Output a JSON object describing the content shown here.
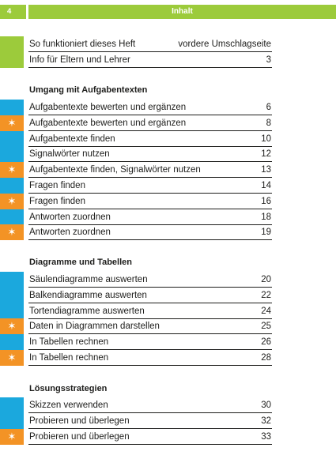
{
  "header": {
    "page_number": "4",
    "title": "Inhalt"
  },
  "colors": {
    "green": "#9ccb3b",
    "blue": "#1ba8dd",
    "orange": "#f39325"
  },
  "intro": [
    {
      "label": "So funktioniert dieses Heft",
      "page": "vordere Umschlagseite",
      "marker": "green"
    },
    {
      "label": "Info für Eltern und Lehrer",
      "page": "3",
      "marker": "green"
    }
  ],
  "sections": [
    {
      "title": "Umgang mit Aufgabentexten",
      "items": [
        {
          "label": "Aufgabentexte bewerten und ergänzen",
          "page": "6",
          "marker": "blue"
        },
        {
          "label": "Aufgabentexte bewerten und ergänzen",
          "page": "8",
          "marker": "orange"
        },
        {
          "label": "Aufgabentexte finden",
          "page": "10",
          "marker": "blue"
        },
        {
          "label": "Signalwörter nutzen",
          "page": "12",
          "marker": "blue"
        },
        {
          "label": "Aufgabentexte finden, Signalwörter nutzen",
          "page": "13",
          "marker": "orange"
        },
        {
          "label": "Fragen finden",
          "page": "14",
          "marker": "blue"
        },
        {
          "label": "Fragen finden",
          "page": "16",
          "marker": "orange"
        },
        {
          "label": "Antworten zuordnen",
          "page": "18",
          "marker": "blue"
        },
        {
          "label": "Antworten zuordnen",
          "page": "19",
          "marker": "orange"
        }
      ]
    },
    {
      "title": "Diagramme und Tabellen",
      "items": [
        {
          "label": "Säulendiagramme auswerten",
          "page": "20",
          "marker": "blue"
        },
        {
          "label": "Balkendiagramme auswerten",
          "page": "22",
          "marker": "blue"
        },
        {
          "label": "Tortendiagramme auswerten",
          "page": "24",
          "marker": "blue"
        },
        {
          "label": "Daten in Diagrammen darstellen",
          "page": "25",
          "marker": "orange"
        },
        {
          "label": "In Tabellen rechnen",
          "page": "26",
          "marker": "blue"
        },
        {
          "label": "In Tabellen rechnen",
          "page": "28",
          "marker": "orange"
        }
      ]
    },
    {
      "title": "Lösungsstrategien",
      "items": [
        {
          "label": "Skizzen verwenden",
          "page": "30",
          "marker": "blue"
        },
        {
          "label": "Probieren und überlegen",
          "page": "32",
          "marker": "blue"
        },
        {
          "label": "Probieren und überlegen",
          "page": "33",
          "marker": "orange"
        }
      ]
    }
  ]
}
